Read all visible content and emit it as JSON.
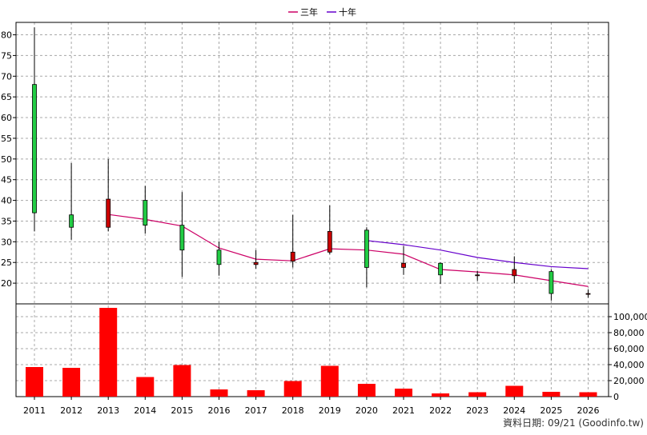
{
  "legend": [
    {
      "name": "三年",
      "color": "#cc0066"
    },
    {
      "name": "十年",
      "color": "#6600cc"
    }
  ],
  "footer": "資料日期: 09/21 (Goodinfo.tw)",
  "colors": {
    "up": "#cc0000",
    "down": "#22cc44",
    "volume": "#ff0000"
  },
  "chart_data": [
    {
      "type": "candlestick",
      "categories": [
        "2011",
        "2012",
        "2013",
        "2014",
        "2015",
        "2016",
        "2017",
        "2018",
        "2019",
        "2020",
        "2021",
        "2022",
        "2023",
        "2024",
        "2025",
        "2026"
      ],
      "ylim": [
        15,
        83
      ],
      "yticks": [
        20,
        25,
        30,
        35,
        40,
        45,
        50,
        55,
        60,
        65,
        70,
        75,
        80
      ],
      "grid": true,
      "legend_position": "top-center",
      "ohlc": [
        {
          "x": "2011",
          "open": 68.0,
          "high": 81.8,
          "low": 32.5,
          "close": 37.0
        },
        {
          "x": "2012",
          "open": 36.5,
          "high": 49.0,
          "low": 30.5,
          "close": 33.5
        },
        {
          "x": "2013",
          "open": 33.5,
          "high": 50.0,
          "low": 32.5,
          "close": 40.3
        },
        {
          "x": "2014",
          "open": 40.0,
          "high": 43.5,
          "low": 32.0,
          "close": 34.0
        },
        {
          "x": "2015",
          "open": 34.0,
          "high": 42.0,
          "low": 21.5,
          "close": 28.0
        },
        {
          "x": "2016",
          "open": 28.0,
          "high": 30.0,
          "low": 21.8,
          "close": 24.5
        },
        {
          "x": "2017",
          "open": 24.5,
          "high": 28.0,
          "low": 23.5,
          "close": 25.0
        },
        {
          "x": "2018",
          "open": 25.3,
          "high": 36.5,
          "low": 23.8,
          "close": 27.5
        },
        {
          "x": "2019",
          "open": 27.5,
          "high": 38.8,
          "low": 27.0,
          "close": 32.5
        },
        {
          "x": "2020",
          "open": 32.8,
          "high": 33.5,
          "low": 19.0,
          "close": 23.8
        },
        {
          "x": "2021",
          "open": 23.8,
          "high": 29.0,
          "low": 22.0,
          "close": 24.8
        },
        {
          "x": "2022",
          "open": 24.8,
          "high": 25.0,
          "low": 19.8,
          "close": 22.0
        },
        {
          "x": "2023",
          "open": 21.8,
          "high": 23.0,
          "low": 20.5,
          "close": 22.0
        },
        {
          "x": "2024",
          "open": 21.8,
          "high": 26.5,
          "low": 20.0,
          "close": 23.3
        },
        {
          "x": "2025",
          "open": 22.8,
          "high": 23.3,
          "low": 15.8,
          "close": 17.5
        },
        {
          "x": "2026",
          "open": 17.5,
          "high": 18.5,
          "low": 16.5,
          "close": 17.5
        }
      ],
      "series": [
        {
          "name": "三年",
          "color": "#cc0066",
          "x": [
            "2013",
            "2014",
            "2015",
            "2016",
            "2017",
            "2018",
            "2019",
            "2020",
            "2021",
            "2022",
            "2023",
            "2024",
            "2025",
            "2026"
          ],
          "values": [
            36.6,
            35.4,
            33.8,
            28.5,
            25.8,
            25.4,
            28.3,
            28.0,
            27.0,
            23.3,
            22.7,
            22.0,
            20.6,
            19.2
          ]
        },
        {
          "name": "十年",
          "color": "#6600cc",
          "x": [
            "2020",
            "2021",
            "2022",
            "2023",
            "2024",
            "2025",
            "2026"
          ],
          "values": [
            30.3,
            29.3,
            28.0,
            26.2,
            25.0,
            24.0,
            23.5
          ]
        }
      ]
    },
    {
      "type": "bar",
      "categories": [
        "2011",
        "2012",
        "2013",
        "2014",
        "2015",
        "2016",
        "2017",
        "2018",
        "2019",
        "2020",
        "2021",
        "2022",
        "2023",
        "2024",
        "2025",
        "2026"
      ],
      "values": [
        37000,
        36000,
        111000,
        24500,
        39500,
        9000,
        8000,
        19500,
        38500,
        16000,
        10000,
        4000,
        5500,
        13500,
        6000,
        5500
      ],
      "ylim": [
        0,
        116000
      ],
      "yticks": [
        "0",
        "20,000",
        "40,000",
        "60,000",
        "80,000",
        "100,000"
      ],
      "grid": true
    }
  ]
}
